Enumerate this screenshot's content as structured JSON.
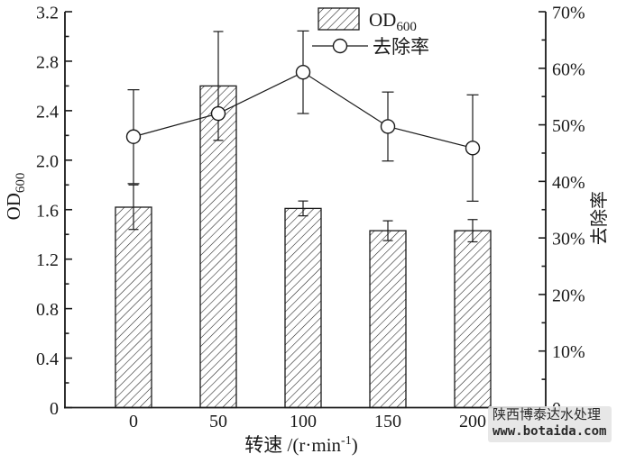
{
  "chart_data": {
    "type": "bar+line",
    "categories": [
      "0",
      "50",
      "100",
      "150",
      "200"
    ],
    "x_axis": {
      "label_prefix": "转速 /(r·min",
      "label_sup": "-1",
      "label_suffix": ")",
      "ticks": [
        {
          "v": 0,
          "t": "0"
        },
        {
          "v": 50,
          "t": "50"
        },
        {
          "v": 100,
          "t": "100"
        },
        {
          "v": 150,
          "t": "150"
        },
        {
          "v": 200,
          "t": "200"
        }
      ]
    },
    "left_axis": {
      "label_prefix": "OD",
      "label_sub": "600",
      "min": 0,
      "max": 3.2,
      "major_step": 0.4,
      "minor_step": 0.2,
      "ticks": [
        {
          "v": 0,
          "t": "0"
        },
        {
          "v": 0.4,
          "t": "0.4"
        },
        {
          "v": 0.8,
          "t": "0.8"
        },
        {
          "v": 1.2,
          "t": "1.2"
        },
        {
          "v": 1.6,
          "t": "1.6"
        },
        {
          "v": 2.0,
          "t": "2.0"
        },
        {
          "v": 2.4,
          "t": "2.4"
        },
        {
          "v": 2.8,
          "t": "2.8"
        },
        {
          "v": 3.2,
          "t": "3.2"
        }
      ]
    },
    "right_axis": {
      "label": "去除率",
      "min": 0,
      "max": 70,
      "major_step": 10,
      "minor_step": 5,
      "ticks": [
        {
          "v": 0,
          "t": "0"
        },
        {
          "v": 10,
          "t": "10%"
        },
        {
          "v": 20,
          "t": "20%"
        },
        {
          "v": 30,
          "t": "30%"
        },
        {
          "v": 40,
          "t": "40%"
        },
        {
          "v": 50,
          "t": "50%"
        },
        {
          "v": 60,
          "t": "60%"
        },
        {
          "v": 70,
          "t": "70%"
        }
      ]
    },
    "series": [
      {
        "name_prefix": "OD",
        "name_sub": "600",
        "type": "bar",
        "axis": "left",
        "values": [
          1.62,
          2.6,
          1.61,
          1.43,
          1.43
        ],
        "errors": [
          0.18,
          0.44,
          0.06,
          0.08,
          0.09
        ]
      },
      {
        "name": "去除率",
        "type": "line",
        "axis": "right",
        "values": [
          47.9,
          52.0,
          59.3,
          49.7,
          45.9
        ],
        "errors": [
          8.3,
          0,
          7.3,
          6.1,
          9.4
        ]
      }
    ],
    "legend_position": "top-center",
    "grid": false
  },
  "watermark": {
    "line1": "陕西博泰达水处理",
    "line2": "www.botaida.com"
  },
  "colors": {
    "ink": "#1a1a1a",
    "background": "#ffffff",
    "watermark_bg": "#e4e4e4",
    "watermark_ink": "#2a2a2a"
  }
}
